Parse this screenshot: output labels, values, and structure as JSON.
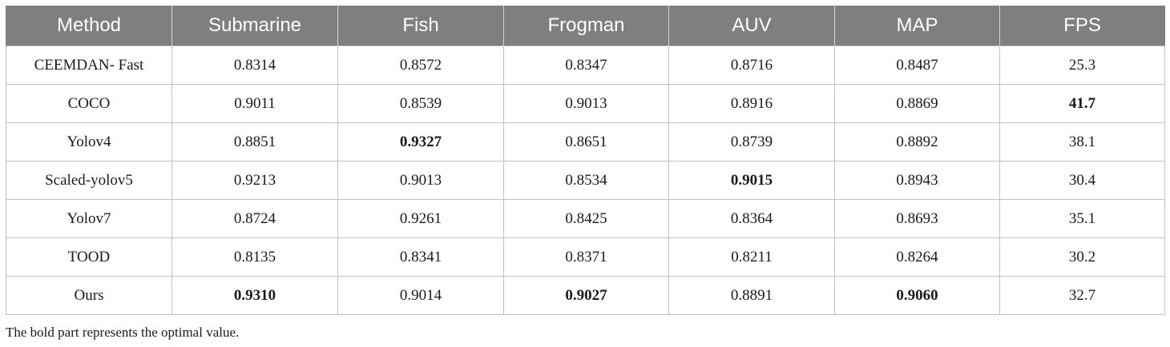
{
  "table": {
    "headers": [
      "Method",
      "Submarine",
      "Fish",
      "Frogman",
      "AUV",
      "MAP",
      "FPS"
    ],
    "rows": [
      {
        "cells": [
          "CEEMDAN- Fast",
          "0.8314",
          "0.8572",
          "0.8347",
          "0.8716",
          "0.8487",
          "25.3"
        ],
        "bold": []
      },
      {
        "cells": [
          "COCO",
          "0.9011",
          "0.8539",
          "0.9013",
          "0.8916",
          "0.8869",
          "41.7"
        ],
        "bold": [
          6
        ]
      },
      {
        "cells": [
          "Yolov4",
          "0.8851",
          "0.9327",
          "0.8651",
          "0.8739",
          "0.8892",
          "38.1"
        ],
        "bold": [
          2
        ]
      },
      {
        "cells": [
          "Scaled-yolov5",
          "0.9213",
          "0.9013",
          "0.8534",
          "0.9015",
          "0.8943",
          "30.4"
        ],
        "bold": [
          4
        ]
      },
      {
        "cells": [
          "Yolov7",
          "0.8724",
          "0.9261",
          "0.8425",
          "0.8364",
          "0.8693",
          "35.1"
        ],
        "bold": []
      },
      {
        "cells": [
          "TOOD",
          "0.8135",
          "0.8341",
          "0.8371",
          "0.8211",
          "0.8264",
          "30.2"
        ],
        "bold": []
      },
      {
        "cells": [
          "Ours",
          "0.9310",
          "0.9014",
          "0.9027",
          "0.8891",
          "0.9060",
          "32.7"
        ],
        "bold": [
          1,
          3,
          5
        ]
      }
    ]
  },
  "footnote": "The bold part represents the optimal value."
}
